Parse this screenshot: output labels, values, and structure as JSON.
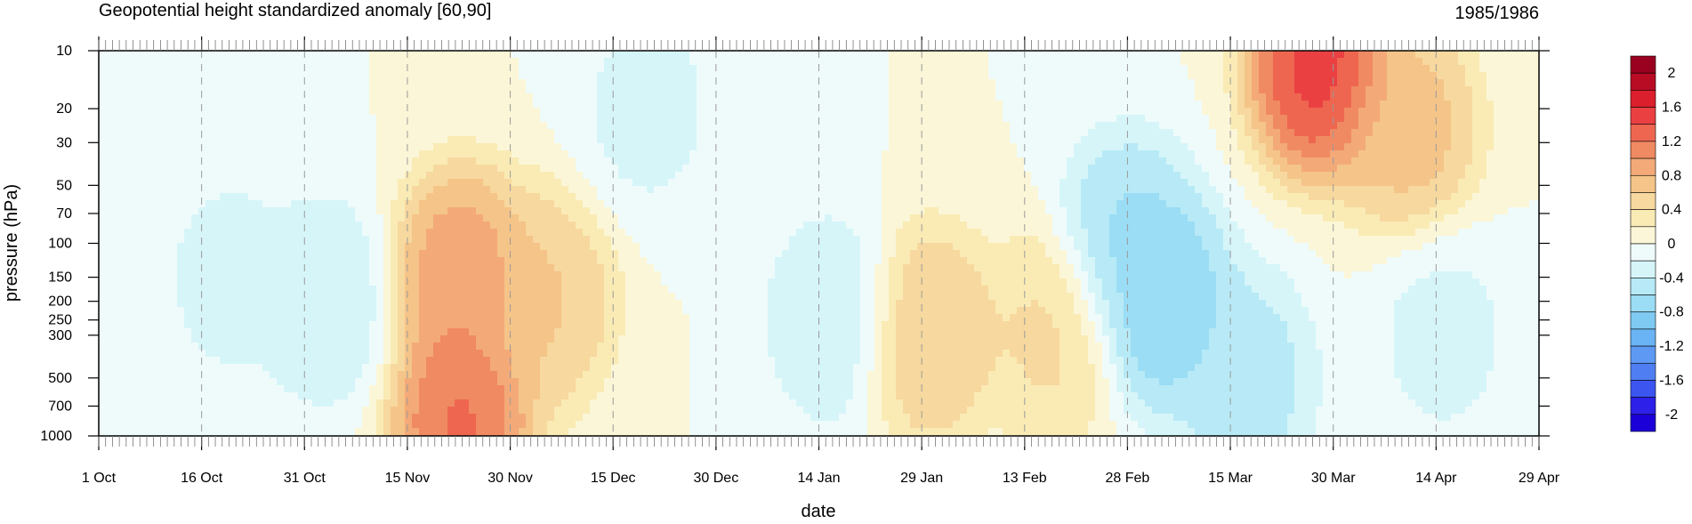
{
  "chart_data": {
    "type": "heatmap",
    "title": "Geopotential height standardized anomaly [60,90]",
    "period_label": "1985/1986",
    "xlabel": "date",
    "ylabel": "pressure (hPa)",
    "y_scale": "log",
    "y_reversed": true,
    "ylim": [
      1000,
      10
    ],
    "xlim": [
      "1985-10-01",
      "1986-04-29"
    ],
    "x_ticks": [
      {
        "date": "1985-10-01",
        "label": "1 Oct"
      },
      {
        "date": "1985-10-16",
        "label": "16 Oct"
      },
      {
        "date": "1985-10-31",
        "label": "31 Oct"
      },
      {
        "date": "1985-11-15",
        "label": "15 Nov"
      },
      {
        "date": "1985-11-30",
        "label": "30 Nov"
      },
      {
        "date": "1985-12-15",
        "label": "15 Dec"
      },
      {
        "date": "1985-12-30",
        "label": "30 Dec"
      },
      {
        "date": "1986-01-14",
        "label": "14 Jan"
      },
      {
        "date": "1986-01-29",
        "label": "29 Jan"
      },
      {
        "date": "1986-02-13",
        "label": "13 Feb"
      },
      {
        "date": "1986-02-28",
        "label": "28 Feb"
      },
      {
        "date": "1986-03-15",
        "label": "15 Mar"
      },
      {
        "date": "1986-03-30",
        "label": "30 Mar"
      },
      {
        "date": "1986-04-14",
        "label": "14 Apr"
      },
      {
        "date": "1986-04-29",
        "label": "29 Apr"
      }
    ],
    "y_ticks": [
      10,
      20,
      30,
      50,
      70,
      100,
      150,
      200,
      250,
      300,
      500,
      700,
      1000
    ],
    "grid": "dashed vertical lines at date ticks",
    "levels": [
      -2,
      -1.8,
      -1.6,
      -1.4,
      -1.2,
      -1,
      -0.8,
      -0.6,
      -0.4,
      -0.2,
      0,
      0.2,
      0.4,
      0.6,
      0.8,
      1,
      1.2,
      1.4,
      1.6,
      1.8,
      2
    ],
    "colors": [
      "#1c00d8",
      "#2d20e8",
      "#3c55f0",
      "#4f7ef2",
      "#5e9af4",
      "#6ab3f4",
      "#7fcaf2",
      "#9addf5",
      "#b7eaf6",
      "#d6f5f9",
      "#effbfb",
      "#fbf6d7",
      "#faebb5",
      "#f7d89e",
      "#f5c488",
      "#f3aa78",
      "#f08a62",
      "#ee6650",
      "#ea4042",
      "#dc1f2c",
      "#b80c25",
      "#9a0020"
    ],
    "colorbar_labels": [
      "2",
      "1.6",
      "1.2",
      "0.8",
      "0.4",
      "0",
      "-0.4",
      "-0.8",
      "-1.2",
      "-1.6",
      "-2"
    ],
    "features": [
      {
        "date": "1985-10-20",
        "pressure": 150,
        "value": -0.3
      },
      {
        "date": "1985-11-03",
        "pressure": 200,
        "value": -0.4
      },
      {
        "date": "1985-11-23",
        "pressure": 150,
        "value": 1.1
      },
      {
        "date": "1985-11-23",
        "pressure": 800,
        "value": 1.4
      },
      {
        "date": "1985-12-05",
        "pressure": 200,
        "value": 0.7
      },
      {
        "date": "1985-12-20",
        "pressure": 20,
        "value": -0.3
      },
      {
        "date": "1986-01-16",
        "pressure": 250,
        "value": -0.4
      },
      {
        "date": "1986-01-30",
        "pressure": 300,
        "value": 0.7
      },
      {
        "date": "1986-02-17",
        "pressure": 300,
        "value": 0.5
      },
      {
        "date": "1986-02-28",
        "pressure": 100,
        "value": -0.7
      },
      {
        "date": "1986-03-05",
        "pressure": 200,
        "value": -0.9
      },
      {
        "date": "1986-03-17",
        "pressure": 500,
        "value": -0.6
      },
      {
        "date": "1986-03-28",
        "pressure": 12,
        "value": 1.7
      },
      {
        "date": "1986-04-10",
        "pressure": 25,
        "value": 0.8
      },
      {
        "date": "1986-04-15",
        "pressure": 300,
        "value": -0.3
      }
    ]
  }
}
